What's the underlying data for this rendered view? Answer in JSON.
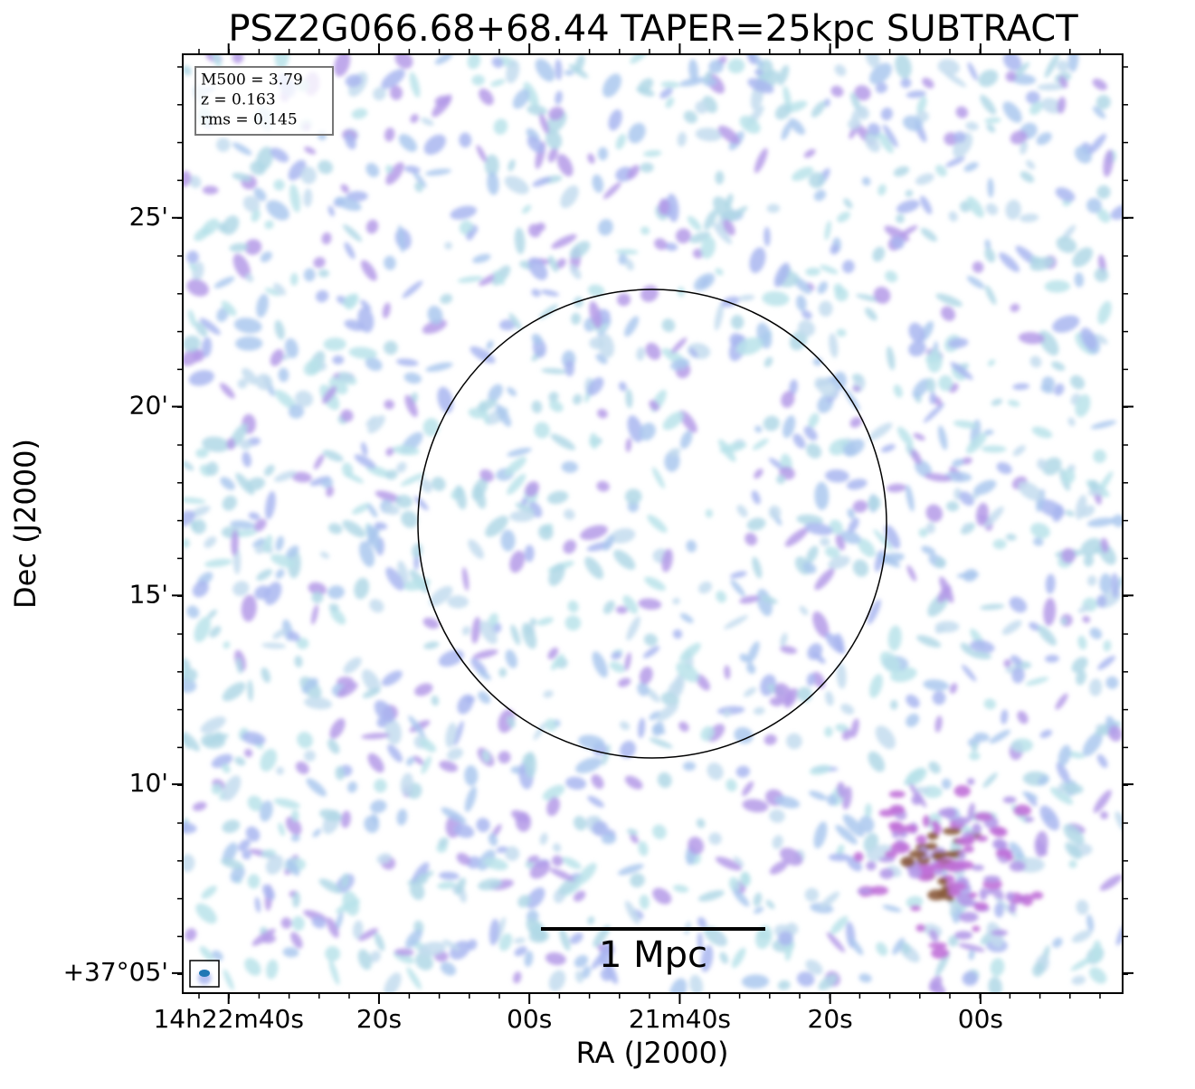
{
  "chart_data": {
    "type": "image",
    "title": "PSZ2G066.68+68.44 TAPER=25kpc SUBTRACT",
    "x_label": "RA (J2000)",
    "y_label": "Dec (J2000)",
    "annotations": [
      "M500 = 3.79",
      "z = 0.163",
      "rms = 0.145"
    ],
    "scale_bar_label": "1 Mpc",
    "xlim": [
      51766.1,
      51641.1
    ],
    "xticks": [
      {
        "value": 51760,
        "label": "14h22m40s"
      },
      {
        "value": 51740,
        "label": "20s"
      },
      {
        "value": 51720,
        "label": "00s"
      },
      {
        "value": 51700,
        "label": "21m40s"
      },
      {
        "value": 51680,
        "label": "20s"
      },
      {
        "value": 51660,
        "label": "00s"
      }
    ],
    "ylim": [
      4.47,
      29.33
    ],
    "yticks": [
      {
        "value": 5,
        "label": "+37°05'"
      },
      {
        "value": 10,
        "label": "10'"
      },
      {
        "value": 15,
        "label": "15'"
      },
      {
        "value": 20,
        "label": "20'"
      },
      {
        "value": 25,
        "label": "25'"
      }
    ]
  }
}
